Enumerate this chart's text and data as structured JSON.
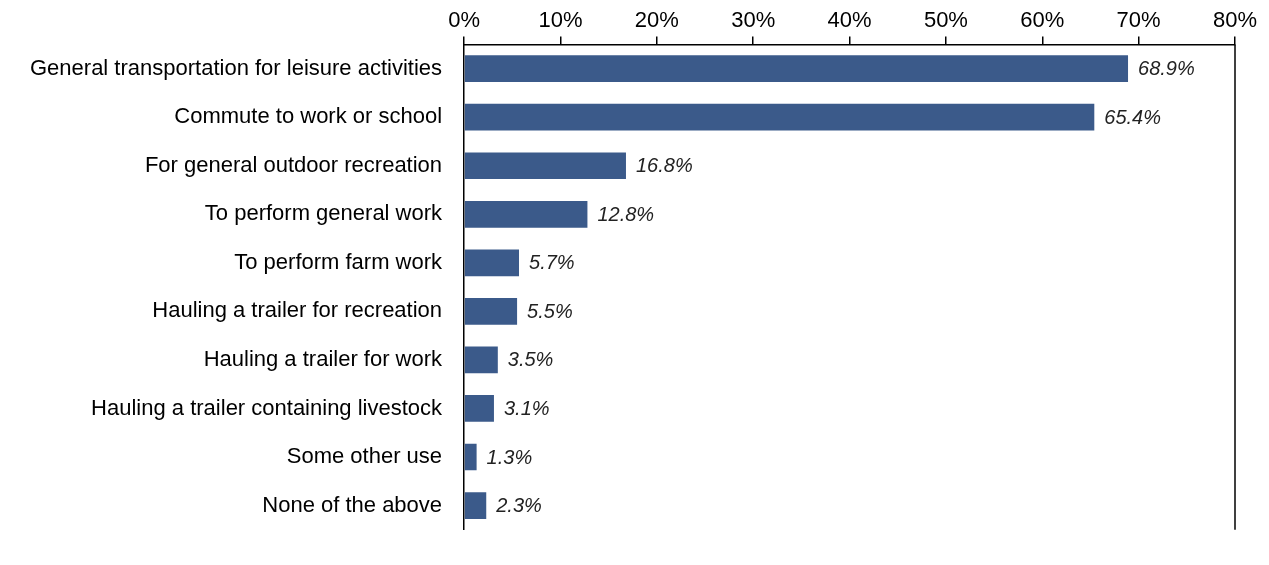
{
  "chart_data": {
    "type": "bar",
    "orientation": "horizontal",
    "categories": [
      "General transportation for leisure activities",
      "Commute to work or school",
      "For general outdoor recreation",
      "To perform general work",
      "To perform farm work",
      "Hauling a trailer for recreation",
      "Hauling a trailer for work",
      "Hauling a trailer containing livestock",
      "Some other use",
      "None of the above"
    ],
    "values": [
      68.9,
      65.4,
      16.8,
      12.8,
      5.7,
      5.5,
      3.5,
      3.1,
      1.3,
      2.3
    ],
    "value_labels": [
      "68.9%",
      "65.4%",
      "16.8%",
      "12.8%",
      "5.7%",
      "5.5%",
      "3.5%",
      "3.1%",
      "1.3%",
      "2.3%"
    ],
    "color": "#3b5a8a",
    "xlim": [
      0,
      80
    ],
    "xticks": [
      {
        "value": 0,
        "label": "0%"
      },
      {
        "value": 10,
        "label": "10%"
      },
      {
        "value": 20,
        "label": "20%"
      },
      {
        "value": 30,
        "label": "30%"
      },
      {
        "value": 40,
        "label": "40%"
      },
      {
        "value": 50,
        "label": "50%"
      },
      {
        "value": 60,
        "label": "60%"
      },
      {
        "value": 70,
        "label": "70%"
      },
      {
        "value": 80,
        "label": "80%"
      }
    ],
    "grid": false,
    "legend": false
  }
}
